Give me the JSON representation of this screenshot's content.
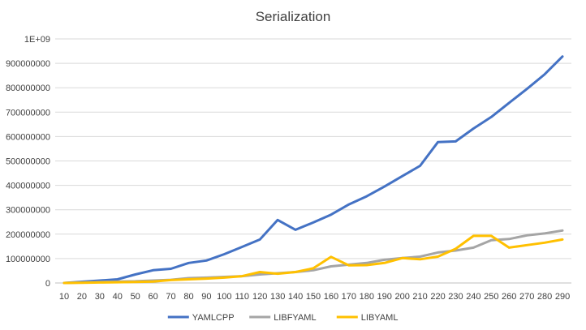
{
  "chart_data": {
    "type": "line",
    "title": "Serialization",
    "xlabel": "",
    "ylabel": "",
    "x": [
      10,
      20,
      30,
      40,
      50,
      60,
      70,
      80,
      90,
      100,
      110,
      120,
      130,
      140,
      150,
      160,
      170,
      180,
      190,
      200,
      210,
      220,
      230,
      240,
      250,
      260,
      270,
      280,
      290
    ],
    "yticks": [
      "0",
      "100000000",
      "200000000",
      "300000000",
      "400000000",
      "500000000",
      "600000000",
      "700000000",
      "800000000",
      "900000000",
      "1E+09"
    ],
    "ylim": [
      0,
      1000000000
    ],
    "grid": true,
    "legend_position": "bottom",
    "series": [
      {
        "name": "YAMLCPP",
        "color": "#4472c4",
        "values": [
          0,
          5000000,
          10000000,
          15000000,
          35000000,
          52000000,
          58000000,
          82000000,
          92000000,
          118000000,
          148000000,
          178000000,
          258000000,
          218000000,
          248000000,
          280000000,
          322000000,
          355000000,
          395000000,
          438000000,
          480000000,
          577000000,
          580000000,
          633000000,
          680000000,
          738000000,
          795000000,
          855000000,
          928000000
        ]
      },
      {
        "name": "LIBFYAML",
        "color": "#a5a5a5",
        "values": [
          0,
          2000000,
          4000000,
          6000000,
          7000000,
          10000000,
          13000000,
          20000000,
          22000000,
          25000000,
          28000000,
          35000000,
          40000000,
          45000000,
          52000000,
          68000000,
          75000000,
          82000000,
          95000000,
          102000000,
          108000000,
          125000000,
          133000000,
          145000000,
          175000000,
          180000000,
          195000000,
          203000000,
          215000000
        ]
      },
      {
        "name": "LIBYAML",
        "color": "#ffc000",
        "values": [
          0,
          1000000,
          2000000,
          3000000,
          4000000,
          6000000,
          12000000,
          15000000,
          18000000,
          22000000,
          28000000,
          45000000,
          38000000,
          45000000,
          60000000,
          107000000,
          72000000,
          73000000,
          82000000,
          102000000,
          97000000,
          108000000,
          140000000,
          193000000,
          193000000,
          145000000,
          155000000,
          165000000,
          178000000
        ]
      }
    ]
  }
}
